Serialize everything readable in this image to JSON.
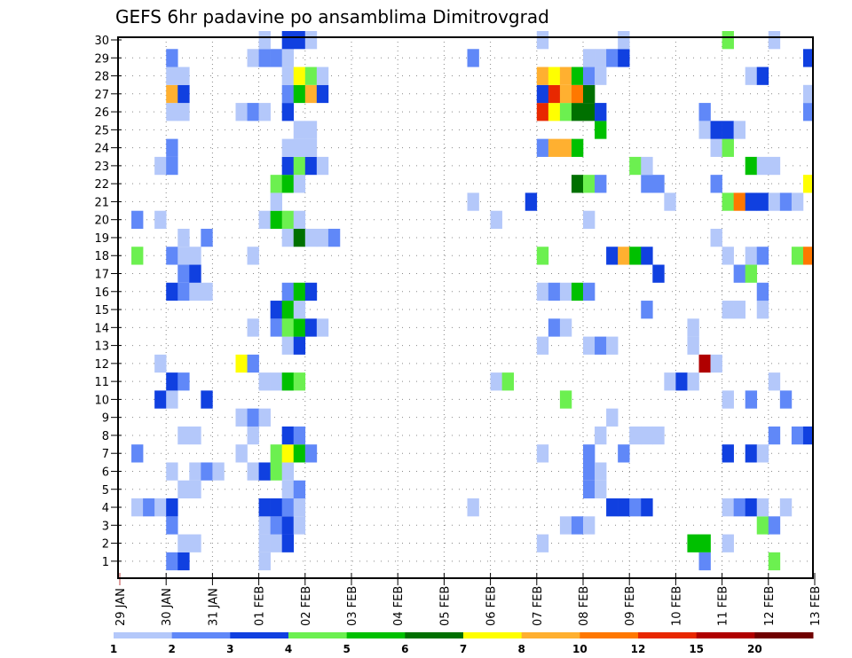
{
  "chart_data": {
    "type": "heatmap",
    "title": "GEFS 6hr padavine po ansamblima Dimitrovgrad",
    "xlabel": "",
    "ylabel": "",
    "x_step_hours": 6,
    "x_tick_labels": [
      "29 JAN",
      "30 JAN",
      "31 JAN",
      "01 FEB",
      "02 FEB",
      "03 FEB",
      "04 FEB",
      "05 FEB",
      "06 FEB",
      "07 FEB",
      "08 FEB",
      "09 FEB",
      "10 FEB",
      "11 FEB",
      "12 FEB",
      "13 FEB"
    ],
    "y_tick_labels": [
      "1",
      "2",
      "3",
      "4",
      "5",
      "6",
      "7",
      "8",
      "9",
      "10",
      "11",
      "12",
      "13",
      "14",
      "15",
      "16",
      "17",
      "18",
      "19",
      "20",
      "21",
      "22",
      "23",
      "24",
      "25",
      "26",
      "27",
      "28",
      "29",
      "30"
    ],
    "ylim": [
      0,
      30
    ],
    "x_steps_total": 60,
    "grid": "dotted",
    "legend": {
      "placement": "bottom",
      "levels": [
        "1",
        "2",
        "3",
        "4",
        "5",
        "6",
        "7",
        "8",
        "10",
        "12",
        "15",
        "20"
      ],
      "colors": [
        "#b4c8fa",
        "#6088f8",
        "#1040e0",
        "#6cf050",
        "#00c000",
        "#007000",
        "#ffff00",
        "#ffb030",
        "#ff7800",
        "#e82800",
        "#b00000",
        "#700000"
      ]
    },
    "cells_note": "each member lists [6hr-step index from 29 JAN 00Z, color class index into legend.colors]",
    "members": {
      "30": [
        [
          12,
          0
        ],
        [
          14,
          2
        ],
        [
          15,
          2
        ],
        [
          16,
          0
        ],
        [
          36,
          0
        ],
        [
          43,
          0
        ],
        [
          52,
          3
        ],
        [
          56,
          0
        ]
      ],
      "29": [
        [
          4,
          1
        ],
        [
          11,
          0
        ],
        [
          12,
          1
        ],
        [
          13,
          1
        ],
        [
          14,
          0
        ],
        [
          30,
          1
        ],
        [
          40,
          0
        ],
        [
          41,
          0
        ],
        [
          42,
          1
        ],
        [
          43,
          2
        ],
        [
          59,
          2
        ]
      ],
      "28": [
        [
          4,
          0
        ],
        [
          5,
          0
        ],
        [
          14,
          0
        ],
        [
          15,
          6
        ],
        [
          16,
          3
        ],
        [
          17,
          0
        ],
        [
          36,
          7
        ],
        [
          37,
          6
        ],
        [
          38,
          7
        ],
        [
          39,
          4
        ],
        [
          40,
          1
        ],
        [
          41,
          0
        ],
        [
          54,
          0
        ],
        [
          55,
          2
        ]
      ],
      "27": [
        [
          4,
          7
        ],
        [
          5,
          2
        ],
        [
          14,
          1
        ],
        [
          15,
          4
        ],
        [
          16,
          7
        ],
        [
          17,
          2
        ],
        [
          36,
          2
        ],
        [
          37,
          9
        ],
        [
          38,
          7
        ],
        [
          39,
          8
        ],
        [
          40,
          5
        ],
        [
          59,
          0
        ]
      ],
      "26": [
        [
          4,
          0
        ],
        [
          5,
          0
        ],
        [
          10,
          0
        ],
        [
          11,
          1
        ],
        [
          12,
          0
        ],
        [
          14,
          2
        ],
        [
          36,
          9
        ],
        [
          37,
          6
        ],
        [
          38,
          3
        ],
        [
          39,
          5
        ],
        [
          40,
          5
        ],
        [
          41,
          2
        ],
        [
          50,
          1
        ],
        [
          59,
          1
        ]
      ],
      "25": [
        [
          15,
          0
        ],
        [
          16,
          0
        ],
        [
          41,
          4
        ],
        [
          50,
          0
        ],
        [
          51,
          2
        ],
        [
          52,
          2
        ],
        [
          53,
          0
        ]
      ],
      "24": [
        [
          4,
          1
        ],
        [
          14,
          0
        ],
        [
          15,
          0
        ],
        [
          16,
          0
        ],
        [
          36,
          1
        ],
        [
          37,
          7
        ],
        [
          38,
          7
        ],
        [
          39,
          4
        ],
        [
          51,
          0
        ],
        [
          52,
          3
        ]
      ],
      "23": [
        [
          3,
          0
        ],
        [
          4,
          1
        ],
        [
          14,
          2
        ],
        [
          15,
          3
        ],
        [
          16,
          2
        ],
        [
          17,
          0
        ],
        [
          44,
          3
        ],
        [
          45,
          0
        ],
        [
          54,
          4
        ],
        [
          55,
          0
        ],
        [
          56,
          0
        ]
      ],
      "22": [
        [
          13,
          3
        ],
        [
          14,
          4
        ],
        [
          15,
          0
        ],
        [
          39,
          5
        ],
        [
          40,
          3
        ],
        [
          41,
          1
        ],
        [
          45,
          1
        ],
        [
          46,
          1
        ],
        [
          51,
          1
        ],
        [
          59,
          6
        ]
      ],
      "21": [
        [
          13,
          0
        ],
        [
          30,
          0
        ],
        [
          35,
          2
        ],
        [
          47,
          0
        ],
        [
          52,
          3
        ],
        [
          53,
          8
        ],
        [
          54,
          2
        ],
        [
          55,
          2
        ],
        [
          56,
          0
        ],
        [
          57,
          1
        ],
        [
          58,
          0
        ]
      ],
      "20": [
        [
          1,
          1
        ],
        [
          3,
          0
        ],
        [
          12,
          0
        ],
        [
          13,
          4
        ],
        [
          14,
          3
        ],
        [
          15,
          0
        ],
        [
          32,
          0
        ],
        [
          40,
          0
        ]
      ],
      "19": [
        [
          5,
          0
        ],
        [
          7,
          1
        ],
        [
          14,
          0
        ],
        [
          15,
          5
        ],
        [
          16,
          0
        ],
        [
          17,
          0
        ],
        [
          18,
          1
        ],
        [
          51,
          0
        ]
      ],
      "18": [
        [
          1,
          3
        ],
        [
          4,
          1
        ],
        [
          5,
          0
        ],
        [
          6,
          0
        ],
        [
          11,
          0
        ],
        [
          36,
          3
        ],
        [
          42,
          2
        ],
        [
          43,
          7
        ],
        [
          44,
          4
        ],
        [
          45,
          2
        ],
        [
          52,
          0
        ],
        [
          54,
          0
        ],
        [
          55,
          1
        ],
        [
          58,
          3
        ],
        [
          59,
          8
        ]
      ],
      "17": [
        [
          5,
          1
        ],
        [
          6,
          2
        ],
        [
          46,
          2
        ],
        [
          53,
          1
        ],
        [
          54,
          3
        ]
      ],
      "16": [
        [
          4,
          2
        ],
        [
          5,
          1
        ],
        [
          6,
          0
        ],
        [
          7,
          0
        ],
        [
          14,
          1
        ],
        [
          15,
          4
        ],
        [
          16,
          2
        ],
        [
          36,
          0
        ],
        [
          37,
          1
        ],
        [
          38,
          0
        ],
        [
          39,
          4
        ],
        [
          40,
          1
        ],
        [
          55,
          1
        ]
      ],
      "15": [
        [
          13,
          2
        ],
        [
          14,
          4
        ],
        [
          15,
          0
        ],
        [
          45,
          1
        ],
        [
          52,
          0
        ],
        [
          53,
          0
        ],
        [
          55,
          0
        ]
      ],
      "14": [
        [
          11,
          0
        ],
        [
          13,
          1
        ],
        [
          14,
          3
        ],
        [
          15,
          4
        ],
        [
          16,
          2
        ],
        [
          17,
          0
        ],
        [
          37,
          1
        ],
        [
          38,
          0
        ],
        [
          49,
          0
        ]
      ],
      "13": [
        [
          14,
          0
        ],
        [
          15,
          2
        ],
        [
          36,
          0
        ],
        [
          40,
          0
        ],
        [
          41,
          1
        ],
        [
          42,
          0
        ],
        [
          49,
          0
        ]
      ],
      "12": [
        [
          3,
          0
        ],
        [
          10,
          6
        ],
        [
          11,
          1
        ],
        [
          50,
          10
        ],
        [
          51,
          0
        ]
      ],
      "11": [
        [
          4,
          2
        ],
        [
          5,
          1
        ],
        [
          12,
          0
        ],
        [
          13,
          0
        ],
        [
          14,
          4
        ],
        [
          15,
          3
        ],
        [
          32,
          0
        ],
        [
          33,
          3
        ],
        [
          47,
          0
        ],
        [
          48,
          2
        ],
        [
          49,
          0
        ],
        [
          56,
          0
        ]
      ],
      "10": [
        [
          3,
          2
        ],
        [
          4,
          0
        ],
        [
          7,
          2
        ],
        [
          38,
          3
        ],
        [
          52,
          0
        ],
        [
          54,
          1
        ],
        [
          57,
          1
        ]
      ],
      "9": [
        [
          10,
          0
        ],
        [
          11,
          1
        ],
        [
          12,
          0
        ],
        [
          42,
          0
        ]
      ],
      "8": [
        [
          5,
          0
        ],
        [
          6,
          0
        ],
        [
          11,
          0
        ],
        [
          14,
          2
        ],
        [
          15,
          1
        ],
        [
          41,
          0
        ],
        [
          44,
          0
        ],
        [
          45,
          0
        ],
        [
          46,
          0
        ],
        [
          56,
          1
        ],
        [
          58,
          1
        ],
        [
          59,
          2
        ]
      ],
      "7": [
        [
          1,
          1
        ],
        [
          10,
          0
        ],
        [
          13,
          3
        ],
        [
          14,
          6
        ],
        [
          15,
          4
        ],
        [
          16,
          1
        ],
        [
          36,
          0
        ],
        [
          40,
          1
        ],
        [
          43,
          1
        ],
        [
          52,
          2
        ],
        [
          54,
          2
        ],
        [
          55,
          0
        ]
      ],
      "6": [
        [
          4,
          0
        ],
        [
          6,
          0
        ],
        [
          7,
          1
        ],
        [
          8,
          0
        ],
        [
          11,
          0
        ],
        [
          12,
          2
        ],
        [
          13,
          3
        ],
        [
          14,
          0
        ],
        [
          40,
          1
        ],
        [
          41,
          0
        ]
      ],
      "5": [
        [
          5,
          0
        ],
        [
          6,
          0
        ],
        [
          14,
          0
        ],
        [
          15,
          1
        ],
        [
          40,
          1
        ],
        [
          41,
          0
        ]
      ],
      "4": [
        [
          1,
          0
        ],
        [
          2,
          1
        ],
        [
          3,
          0
        ],
        [
          4,
          2
        ],
        [
          12,
          2
        ],
        [
          13,
          2
        ],
        [
          14,
          1
        ],
        [
          15,
          0
        ],
        [
          30,
          0
        ],
        [
          42,
          2
        ],
        [
          43,
          2
        ],
        [
          44,
          1
        ],
        [
          45,
          2
        ],
        [
          52,
          0
        ],
        [
          53,
          1
        ],
        [
          54,
          2
        ],
        [
          55,
          0
        ],
        [
          57,
          0
        ]
      ],
      "3": [
        [
          4,
          1
        ],
        [
          12,
          0
        ],
        [
          13,
          1
        ],
        [
          14,
          2
        ],
        [
          15,
          0
        ],
        [
          38,
          0
        ],
        [
          39,
          1
        ],
        [
          40,
          0
        ],
        [
          55,
          3
        ],
        [
          56,
          1
        ]
      ],
      "2": [
        [
          5,
          0
        ],
        [
          6,
          0
        ],
        [
          12,
          0
        ],
        [
          13,
          0
        ],
        [
          14,
          2
        ],
        [
          36,
          0
        ],
        [
          49,
          4
        ],
        [
          50,
          4
        ],
        [
          52,
          0
        ]
      ],
      "1": [
        [
          4,
          1
        ],
        [
          5,
          2
        ],
        [
          12,
          0
        ],
        [
          50,
          1
        ],
        [
          56,
          3
        ]
      ]
    }
  }
}
